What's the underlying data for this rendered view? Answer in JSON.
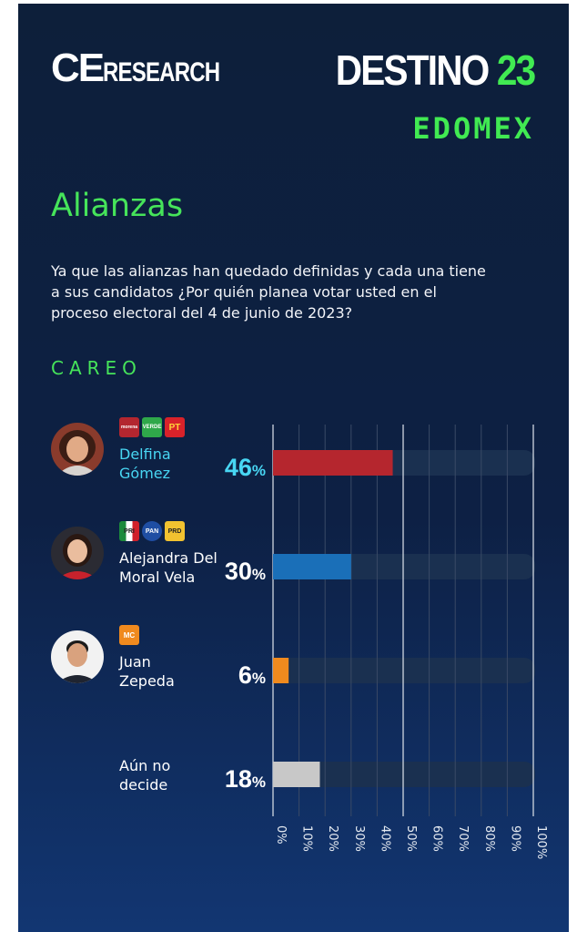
{
  "header": {
    "logo_ce": "CE",
    "logo_research": "RESEARCH",
    "brand_word": "DESTINO",
    "brand_number": "23",
    "region": "EDOMEX"
  },
  "section_title": "Alianzas",
  "question": "Ya que las alianzas han quedado definidas y cada una tiene a sus candidatos ¿Por quién planea votar usted en el proceso electoral del 4 de junio de 2023?",
  "subheading": "CAREO",
  "colors": {
    "accent_green": "#46e45a",
    "highlight_cyan": "#48d6f3",
    "track": "#1a3050"
  },
  "party_logos": {
    "delfina": [
      {
        "label": "morena",
        "color": "#b3262f"
      },
      {
        "label": "VERDE",
        "color": "#2fa84a"
      },
      {
        "label": "PT",
        "color": "#d8222a"
      }
    ],
    "alejandra": [
      {
        "label": "PRI",
        "color": "#e8e8e8"
      },
      {
        "label": "PAN",
        "color": "#1f4ea3"
      },
      {
        "label": "PRD",
        "color": "#f2c230"
      }
    ],
    "juan": [
      {
        "label": "MC",
        "color": "#f08a1e"
      }
    ]
  },
  "chart_data": {
    "type": "bar",
    "orientation": "horizontal",
    "categories": [
      "Delfina\nGómez",
      "Alejandra Del\nMoral Vela",
      "Juan\nZepeda",
      "Aún no\ndecide"
    ],
    "values": [
      46,
      30,
      6,
      18
    ],
    "value_suffix": "%",
    "colors": [
      "#b5262e",
      "#1a6fb8",
      "#f08a1e",
      "#c8c8c8"
    ],
    "xlim": [
      0,
      100
    ],
    "xticks": [
      "0%",
      "10%",
      "20%",
      "30%",
      "40%",
      "50%",
      "60%",
      "70%",
      "80%",
      "90%",
      "100%"
    ],
    "grid": true,
    "highlight_index": 0
  }
}
